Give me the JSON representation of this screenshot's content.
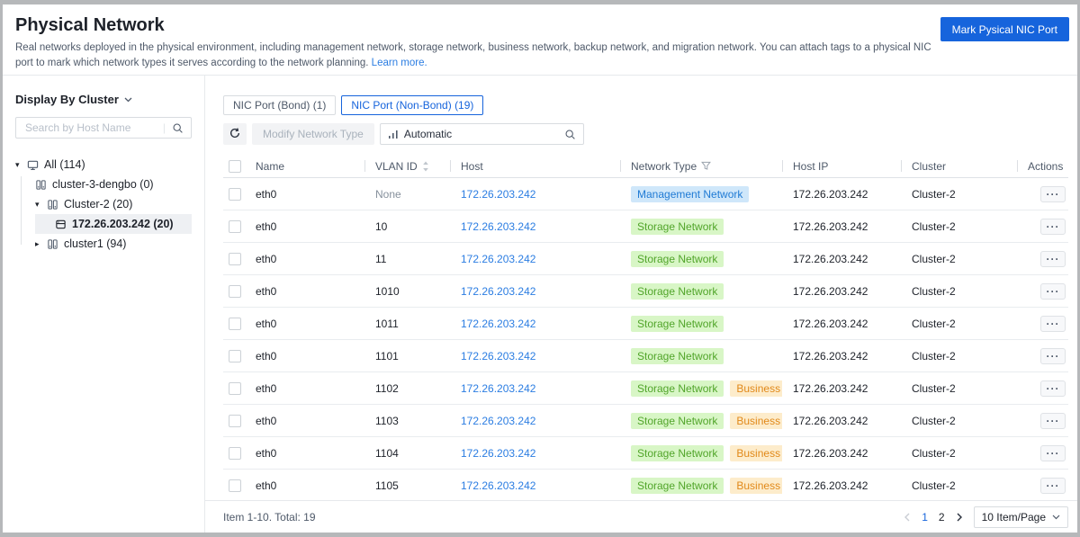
{
  "page": {
    "title": "Physical Network",
    "description": "Real networks deployed in the physical environment, including management network, storage network, business network, backup network, and migration network. You can attach tags to a physical NIC port to mark which network types it serves according to the network planning.",
    "learn_more_label": "Learn more.",
    "primary_button_label": "Mark Pysical NIC Port"
  },
  "sidebar": {
    "display_by_label": "Display By Cluster",
    "search_placeholder": "Search by Host Name",
    "tree": [
      {
        "label": "All (114)",
        "level": 0,
        "icon": "monitor",
        "expand": "open",
        "selected": false
      },
      {
        "label": "cluster-3-dengbo (0)",
        "level": 1,
        "icon": "cluster",
        "expand": null,
        "selected": false
      },
      {
        "label": "Cluster-2 (20)",
        "level": 1,
        "icon": "cluster",
        "expand": "open",
        "selected": false
      },
      {
        "label": "172.26.203.242 (20)",
        "level": 2,
        "icon": "host",
        "expand": null,
        "selected": true
      },
      {
        "label": "cluster1 (94)",
        "level": 1,
        "icon": "cluster",
        "expand": "closed",
        "selected": false
      }
    ]
  },
  "tabs": [
    {
      "label": "NIC Port (Bond) (1)",
      "active": false
    },
    {
      "label": "NIC Port (Non-Bond) (19)",
      "active": true
    }
  ],
  "toolbar": {
    "modify_button_label": "Modify Network Type",
    "search_filter_label": "Automatic"
  },
  "table": {
    "columns": [
      "Name",
      "VLAN ID",
      "Host",
      "Network Type",
      "Host IP",
      "Cluster",
      "Actions"
    ],
    "rows": [
      {
        "name": "eth0",
        "vlan_id": "None",
        "host": "172.26.203.242",
        "network_types": [
          {
            "label": "Management Network",
            "kind": "management"
          }
        ],
        "host_ip": "172.26.203.242",
        "cluster": "Cluster-2"
      },
      {
        "name": "eth0",
        "vlan_id": "10",
        "host": "172.26.203.242",
        "network_types": [
          {
            "label": "Storage Network",
            "kind": "storage"
          }
        ],
        "host_ip": "172.26.203.242",
        "cluster": "Cluster-2"
      },
      {
        "name": "eth0",
        "vlan_id": "11",
        "host": "172.26.203.242",
        "network_types": [
          {
            "label": "Storage Network",
            "kind": "storage"
          }
        ],
        "host_ip": "172.26.203.242",
        "cluster": "Cluster-2"
      },
      {
        "name": "eth0",
        "vlan_id": "1010",
        "host": "172.26.203.242",
        "network_types": [
          {
            "label": "Storage Network",
            "kind": "storage"
          }
        ],
        "host_ip": "172.26.203.242",
        "cluster": "Cluster-2"
      },
      {
        "name": "eth0",
        "vlan_id": "1011",
        "host": "172.26.203.242",
        "network_types": [
          {
            "label": "Storage Network",
            "kind": "storage"
          }
        ],
        "host_ip": "172.26.203.242",
        "cluster": "Cluster-2"
      },
      {
        "name": "eth0",
        "vlan_id": "1101",
        "host": "172.26.203.242",
        "network_types": [
          {
            "label": "Storage Network",
            "kind": "storage"
          }
        ],
        "host_ip": "172.26.203.242",
        "cluster": "Cluster-2"
      },
      {
        "name": "eth0",
        "vlan_id": "1102",
        "host": "172.26.203.242",
        "network_types": [
          {
            "label": "Storage Network",
            "kind": "storage"
          },
          {
            "label": "Business Network",
            "kind": "business"
          }
        ],
        "host_ip": "172.26.203.242",
        "cluster": "Cluster-2"
      },
      {
        "name": "eth0",
        "vlan_id": "1103",
        "host": "172.26.203.242",
        "network_types": [
          {
            "label": "Storage Network",
            "kind": "storage"
          },
          {
            "label": "Business Network",
            "kind": "business"
          }
        ],
        "host_ip": "172.26.203.242",
        "cluster": "Cluster-2"
      },
      {
        "name": "eth0",
        "vlan_id": "1104",
        "host": "172.26.203.242",
        "network_types": [
          {
            "label": "Storage Network",
            "kind": "storage"
          },
          {
            "label": "Business Network",
            "kind": "business"
          }
        ],
        "host_ip": "172.26.203.242",
        "cluster": "Cluster-2"
      },
      {
        "name": "eth0",
        "vlan_id": "1105",
        "host": "172.26.203.242",
        "network_types": [
          {
            "label": "Storage Network",
            "kind": "storage"
          },
          {
            "label": "Business Network",
            "kind": "business"
          }
        ],
        "host_ip": "172.26.203.242",
        "cluster": "Cluster-2"
      }
    ]
  },
  "footer": {
    "summary": "Item 1-10. Total: 19",
    "pages": [
      "1",
      "2"
    ],
    "current_page": "1",
    "page_size_label": "10 Item/Page"
  },
  "colors": {
    "primary": "#1664dc",
    "link": "#2b7de2",
    "tag_management_bg": "#cfe7fa",
    "tag_management_text": "#1f7ad4",
    "tag_storage_bg": "#d8f6c6",
    "tag_storage_text": "#51a52a",
    "tag_business_bg": "#fdeccb",
    "tag_business_text": "#e1891a"
  }
}
